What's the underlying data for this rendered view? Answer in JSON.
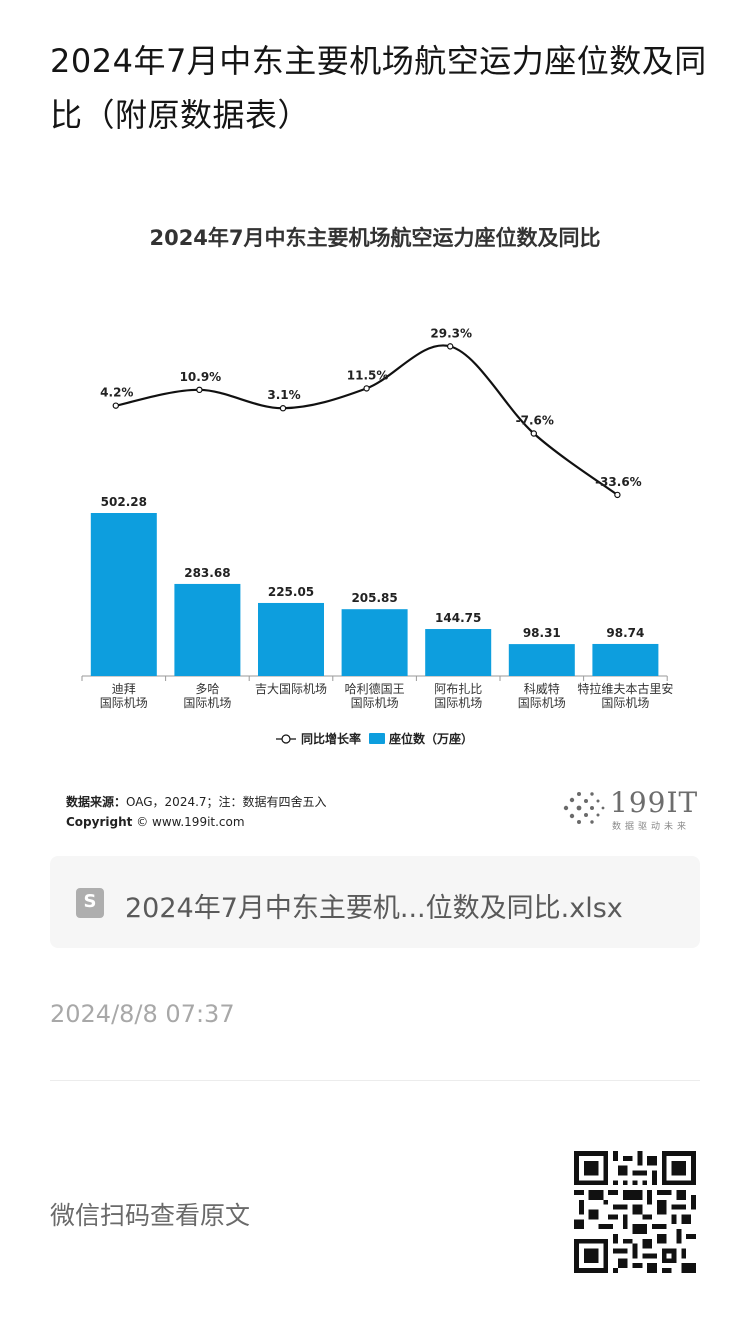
{
  "article": {
    "title": "2024年7月中东主要机场航空运力座位数及同比（附原数据表）"
  },
  "chart_data": {
    "type": "bar+line",
    "title": "2024年7月中东主要机场航空运力座位数及同比",
    "categories": [
      [
        "迪拜",
        "国际机场"
      ],
      [
        "多哈",
        "国际机场"
      ],
      [
        "吉大国际机场"
      ],
      [
        "哈利德国王",
        "国际机场"
      ],
      [
        "阿布扎比",
        "国际机场"
      ],
      [
        "科威特",
        "国际机场"
      ],
      [
        "特拉维夫本古里安",
        "国际机场"
      ]
    ],
    "series": [
      {
        "name": "座位数（万座）",
        "type": "bar",
        "values": [
          502.28,
          283.68,
          225.05,
          205.85,
          144.75,
          98.31,
          98.74
        ],
        "labels": [
          "502.28",
          "283.68",
          "225.05",
          "205.85",
          "144.75",
          "98.31",
          "98.74"
        ],
        "color": "#0d9ede"
      },
      {
        "name": "同比增长率",
        "type": "line",
        "values": [
          4.2,
          10.9,
          3.1,
          11.5,
          29.3,
          -7.6,
          -33.6
        ],
        "labels": [
          "4.2%",
          "10.9%",
          "3.1%",
          "11.5%",
          "29.3%",
          "-7.6%",
          "-33.6%"
        ],
        "color": "#111111"
      }
    ],
    "legend": [
      "同比增长率",
      "座位数（万座）"
    ],
    "legend_position": "bottom",
    "grid": false,
    "bar_ylim": [
      0,
      560
    ],
    "line_ylim": [
      -40,
      32
    ]
  },
  "source": {
    "label": "数据来源：",
    "text": "OAG，2024.7；注：数据有四舍五入",
    "copyright_label": "Copyright",
    "copyright_text": "© www.199it.com"
  },
  "logo": {
    "name": "199IT",
    "slogan": "数据驱动未来"
  },
  "attachment": {
    "file_name": "2024年7月中东主要机...位数及同比.xlsx",
    "icon_letter": "S"
  },
  "meta": {
    "post_time": "2024/8/8 07:37",
    "scan_hint": "微信扫码查看原文"
  },
  "colors": {
    "bar": "#0d9ede",
    "line": "#111111",
    "attachment_bg": "#f6f6f6"
  }
}
